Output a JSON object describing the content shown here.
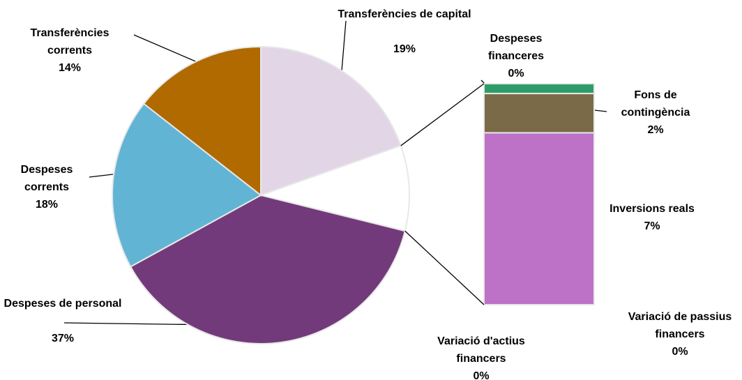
{
  "chart_data": {
    "type": "pie-of-bar",
    "categories": [
      "Transferències de capital",
      "Despeses de personal",
      "Despeses corrents",
      "Transferències corrents"
    ],
    "values": [
      19,
      37,
      18,
      14
    ],
    "value_labels": [
      "19%",
      "37%",
      "18%",
      "14%"
    ],
    "colors": [
      "#e2d6e6",
      "#733a7b",
      "#62b4d4",
      "#b06a00"
    ],
    "bar": {
      "categories": [
        "Variació d'actius financers",
        "Variació de passius financers",
        "Inversions reals",
        "Fons de contingència",
        "Despeses financeres"
      ],
      "values": [
        0,
        0,
        7,
        1.6,
        0.4
      ],
      "value_labels": [
        "0%",
        "0%",
        "7%",
        "2%",
        "0%"
      ],
      "colors": [
        "#4f81bd",
        "#c0504d",
        "#bd72c7",
        "#7a6a47",
        "#2e9c6a"
      ]
    }
  }
}
